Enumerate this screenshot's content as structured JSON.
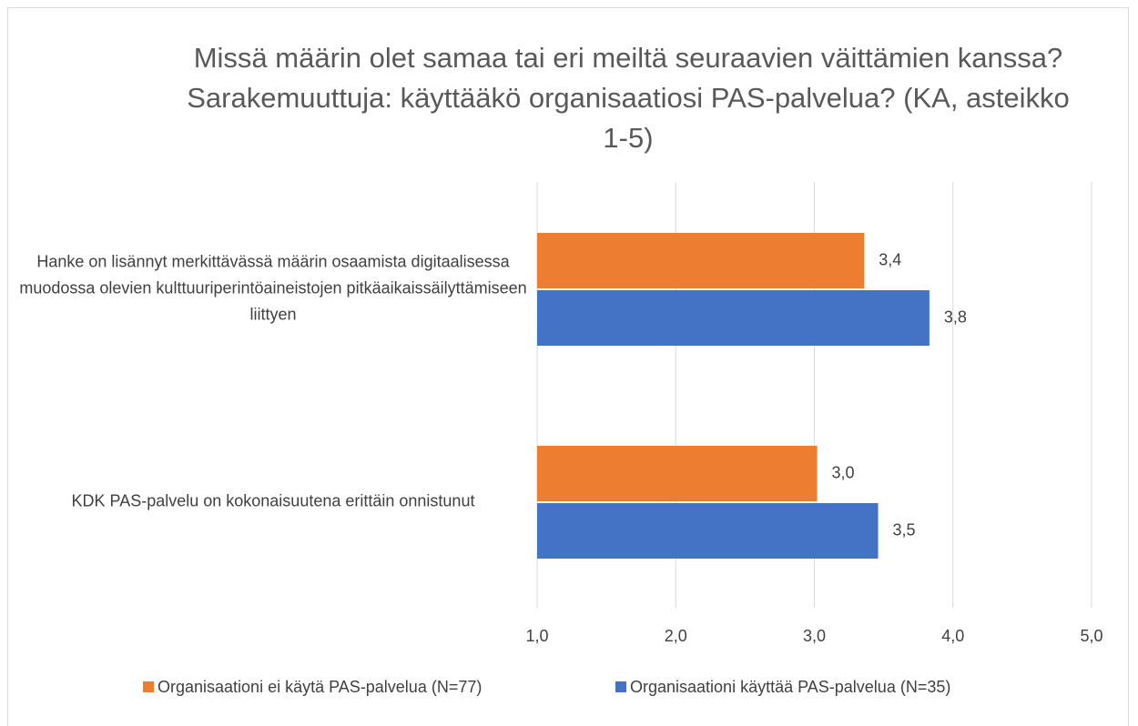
{
  "chart_data": {
    "type": "bar",
    "orientation": "horizontal",
    "title": "Missä määrin olet samaa tai eri meiltä seuraavien väittämien kanssa? Sarakemuuttuja: käyttääkö organisaatiosi PAS-palvelua? (KA, asteikko 1-5)",
    "categories": [
      "Hanke on lisännyt merkittävässä määrin osaamista digitaalisessa muodossa olevien kulttuuriperintöaineistojen pitkäaikaissäilyttämiseen liittyen",
      "KDK PAS-palvelu on kokonaisuutena erittäin onnistunut"
    ],
    "series": [
      {
        "name": "Organisaationi ei käytä PAS-palvelua (N=77)",
        "color": "#ed7d31",
        "values": [
          3.36,
          3.02
        ],
        "value_labels": [
          "3,4",
          "3,0"
        ]
      },
      {
        "name": "Organisaationi käyttää PAS-palvelua (N=35)",
        "color": "#4472c4",
        "values": [
          3.83,
          3.46
        ],
        "value_labels": [
          "3,8",
          "3,5"
        ]
      }
    ],
    "xlim": [
      1,
      5
    ],
    "xticks": [
      {
        "value": 1,
        "label": "1,0"
      },
      {
        "value": 2,
        "label": "2,0"
      },
      {
        "value": 3,
        "label": "3,0"
      },
      {
        "value": 4,
        "label": "4,0"
      },
      {
        "value": 5,
        "label": "5,0"
      }
    ],
    "grid": true,
    "legend": "bottom"
  }
}
